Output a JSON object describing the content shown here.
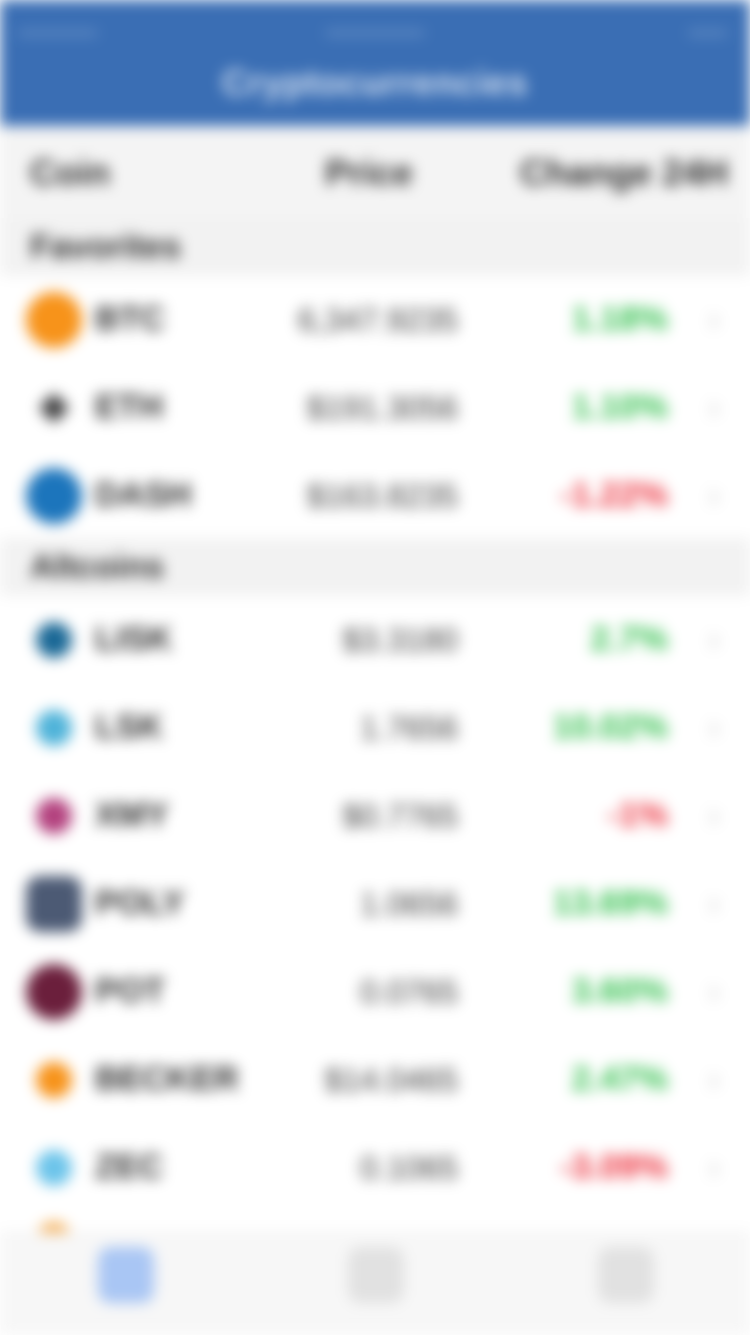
{
  "app": {
    "title": "Cryptocurrencies"
  },
  "columns": {
    "coin": "Coin",
    "price": "Price",
    "change": "Change 24H"
  },
  "sections": [
    {
      "title": "Favorites",
      "rows": [
        {
          "name": "BTC",
          "price": "6,347.9235",
          "change": "1.18%",
          "trend": "up",
          "icon": "bitcoin-icon",
          "icon_color": "#f7931a"
        },
        {
          "name": "ETH",
          "price": "$191.3056",
          "change": "1.10%",
          "trend": "up",
          "icon": "ethereum-icon",
          "icon_color": "#3c3c3d"
        },
        {
          "name": "DASH",
          "price": "$163.8235",
          "change": "-1.22%",
          "trend": "down",
          "icon": "dash-icon",
          "icon_color": "#1c75bc"
        }
      ]
    },
    {
      "title": "Altcoins",
      "rows": [
        {
          "name": "LISK",
          "price": "$3.3180",
          "change": "2.7%",
          "trend": "up",
          "icon": "lisk-icon",
          "icon_color": "#1a6896"
        },
        {
          "name": "LSK",
          "price": "1.7656",
          "change": "10.02%",
          "trend": "up",
          "icon": "lsk-icon",
          "icon_color": "#4fb3d9"
        },
        {
          "name": "XMY",
          "price": "$0.7765",
          "change": "-1%",
          "trend": "down",
          "icon": "myriad-icon",
          "icon_color": "#b3417e"
        },
        {
          "name": "POLY",
          "price": "1.0656",
          "change": "13.69%",
          "trend": "up",
          "icon": "poly-icon",
          "icon_color": "#4c5a74"
        },
        {
          "name": "POT",
          "price": "0.0765",
          "change": "3.60%",
          "trend": "up",
          "icon": "potcoin-icon",
          "icon_color": "#6b1f3c"
        },
        {
          "name": "BECKER",
          "price": "$14.0465",
          "change": "2.47%",
          "trend": "up",
          "icon": "becker-icon",
          "icon_color": "#f7931a"
        },
        {
          "name": "ZEC",
          "price": "0.1065",
          "change": "-3.09%",
          "trend": "down",
          "icon": "zec-icon",
          "icon_color": "#6cc4ea"
        }
      ]
    }
  ],
  "tabs": [
    {
      "label": "",
      "icon": "list-icon",
      "active": true
    },
    {
      "label": "",
      "icon": "news-icon",
      "active": false
    },
    {
      "label": "",
      "icon": "settings-icon",
      "active": false
    }
  ],
  "colors": {
    "accent": "#3a6eb4",
    "up": "#2fbf4a",
    "down": "#ec2f3b"
  }
}
